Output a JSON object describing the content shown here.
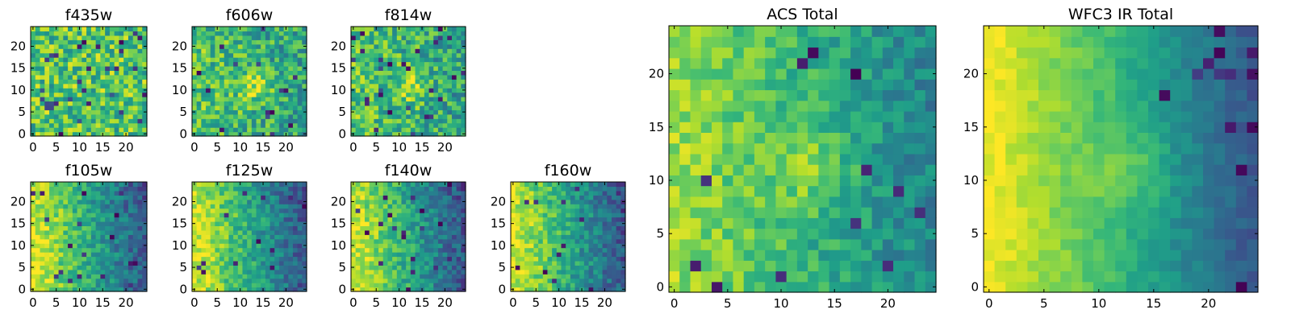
{
  "figure": {
    "description_type": "grid of pixel images (heatmaps)"
  },
  "chart_data": [
    {
      "type": "heatmap",
      "title": "f435w",
      "x_ticks": [
        0,
        5,
        10,
        15,
        20
      ],
      "y_ticks": [
        0,
        5,
        10,
        15,
        20
      ],
      "xlim": [
        0,
        25
      ],
      "ylim": [
        0,
        25
      ],
      "grid": false,
      "colormap": "viridis",
      "seed": 101,
      "pattern": "noise"
    },
    {
      "type": "heatmap",
      "title": "f606w",
      "x_ticks": [
        0,
        5,
        10,
        15,
        20
      ],
      "y_ticks": [
        0,
        5,
        10,
        15,
        20
      ],
      "xlim": [
        0,
        25
      ],
      "ylim": [
        0,
        25
      ],
      "grid": false,
      "colormap": "viridis",
      "seed": 202,
      "pattern": "noise_blob"
    },
    {
      "type": "heatmap",
      "title": "f814w",
      "x_ticks": [
        0,
        5,
        10,
        15,
        20
      ],
      "y_ticks": [
        0,
        5,
        10,
        15,
        20
      ],
      "xlim": [
        0,
        25
      ],
      "ylim": [
        0,
        25
      ],
      "grid": false,
      "colormap": "viridis",
      "seed": 303,
      "pattern": "noise_blob"
    },
    {
      "type": "heatmap",
      "title": "f105w",
      "x_ticks": [
        0,
        5,
        10,
        15,
        20
      ],
      "y_ticks": [
        0,
        5,
        10,
        15,
        20
      ],
      "xlim": [
        0,
        25
      ],
      "ylim": [
        0,
        25
      ],
      "grid": false,
      "colormap": "viridis",
      "seed": 404,
      "pattern": "gradient"
    },
    {
      "type": "heatmap",
      "title": "f125w",
      "x_ticks": [
        0,
        5,
        10,
        15,
        20
      ],
      "y_ticks": [
        0,
        5,
        10,
        15,
        20
      ],
      "xlim": [
        0,
        25
      ],
      "ylim": [
        0,
        25
      ],
      "grid": false,
      "colormap": "viridis",
      "seed": 505,
      "pattern": "gradient"
    },
    {
      "type": "heatmap",
      "title": "f140w",
      "x_ticks": [
        0,
        5,
        10,
        15,
        20
      ],
      "y_ticks": [
        0,
        5,
        10,
        15,
        20
      ],
      "xlim": [
        0,
        25
      ],
      "ylim": [
        0,
        25
      ],
      "grid": false,
      "colormap": "viridis",
      "seed": 606,
      "pattern": "gradient"
    },
    {
      "type": "heatmap",
      "title": "f160w",
      "x_ticks": [
        0,
        5,
        10,
        15,
        20
      ],
      "y_ticks": [
        0,
        5,
        10,
        15,
        20
      ],
      "xlim": [
        0,
        25
      ],
      "ylim": [
        0,
        25
      ],
      "grid": false,
      "colormap": "viridis",
      "seed": 707,
      "pattern": "gradient"
    },
    {
      "type": "heatmap",
      "title": "ACS Total",
      "x_ticks": [
        0,
        5,
        10,
        15,
        20
      ],
      "y_ticks": [
        0,
        5,
        10,
        15,
        20
      ],
      "xlim": [
        0,
        25
      ],
      "ylim": [
        0,
        25
      ],
      "grid": false,
      "colormap": "viridis",
      "seed": 808,
      "pattern": "acs"
    },
    {
      "type": "heatmap",
      "title": "WFC3 IR Total",
      "x_ticks": [
        0,
        5,
        10,
        15,
        20
      ],
      "y_ticks": [
        0,
        5,
        10,
        15,
        20
      ],
      "xlim": [
        0,
        25
      ],
      "ylim": [
        0,
        25
      ],
      "grid": false,
      "colormap": "viridis",
      "seed": 909,
      "pattern": "ir"
    }
  ]
}
